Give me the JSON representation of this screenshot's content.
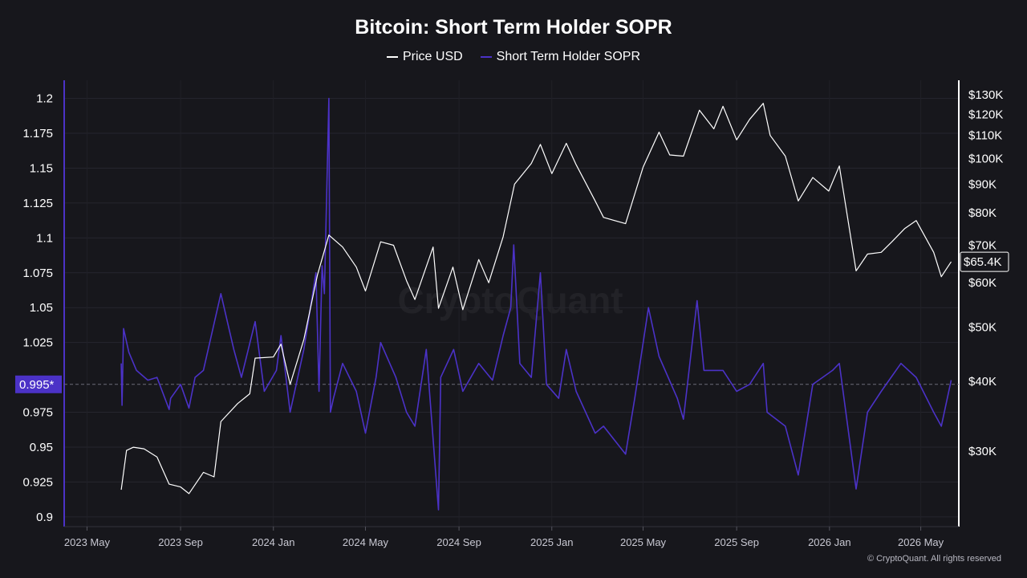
{
  "chart_data": {
    "type": "line",
    "title": "Bitcoin: Short Term Holder SOPR",
    "series": [
      {
        "name": "Price USD",
        "axis": "right",
        "color": "#ffffff",
        "points": [
          [
            "2023-06-15",
            25600
          ],
          [
            "2023-06-22",
            30100
          ],
          [
            "2023-07-01",
            30500
          ],
          [
            "2023-07-15",
            30300
          ],
          [
            "2023-08-01",
            29300
          ],
          [
            "2023-08-17",
            26200
          ],
          [
            "2023-09-01",
            25900
          ],
          [
            "2023-09-12",
            25200
          ],
          [
            "2023-10-01",
            27500
          ],
          [
            "2023-10-15",
            27000
          ],
          [
            "2023-10-24",
            33900
          ],
          [
            "2023-11-15",
            36500
          ],
          [
            "2023-12-01",
            38000
          ],
          [
            "2023-12-08",
            44000
          ],
          [
            "2024-01-01",
            44200
          ],
          [
            "2024-01-11",
            46600
          ],
          [
            "2024-01-23",
            39500
          ],
          [
            "2024-02-10",
            47500
          ],
          [
            "2024-02-28",
            62000
          ],
          [
            "2024-03-14",
            73000
          ],
          [
            "2024-04-01",
            69500
          ],
          [
            "2024-04-19",
            64000
          ],
          [
            "2024-05-01",
            58000
          ],
          [
            "2024-05-21",
            71000
          ],
          [
            "2024-06-07",
            70000
          ],
          [
            "2024-06-24",
            60500
          ],
          [
            "2024-07-05",
            56000
          ],
          [
            "2024-07-29",
            69500
          ],
          [
            "2024-08-05",
            54000
          ],
          [
            "2024-08-24",
            64000
          ],
          [
            "2024-09-06",
            53700
          ],
          [
            "2024-09-27",
            66000
          ],
          [
            "2024-10-10",
            60000
          ],
          [
            "2024-10-29",
            72500
          ],
          [
            "2024-11-13",
            90000
          ],
          [
            "2024-12-05",
            98000
          ],
          [
            "2024-12-17",
            106000
          ],
          [
            "2025-01-01",
            94000
          ],
          [
            "2025-01-20",
            106500
          ],
          [
            "2025-02-02",
            97500
          ],
          [
            "2025-02-27",
            84000
          ],
          [
            "2025-03-10",
            78500
          ],
          [
            "2025-04-08",
            76500
          ],
          [
            "2025-05-01",
            96500
          ],
          [
            "2025-05-22",
            111500
          ],
          [
            "2025-06-05",
            101500
          ],
          [
            "2025-06-23",
            101000
          ],
          [
            "2025-07-14",
            122000
          ],
          [
            "2025-08-02",
            113000
          ],
          [
            "2025-08-14",
            124000
          ],
          [
            "2025-09-01",
            108000
          ],
          [
            "2025-09-18",
            117500
          ],
          [
            "2025-10-06",
            125500
          ],
          [
            "2025-10-15",
            110000
          ],
          [
            "2025-11-04",
            101000
          ],
          [
            "2025-11-21",
            84000
          ],
          [
            "2025-12-10",
            92500
          ],
          [
            "2025-12-31",
            87500
          ],
          [
            "2026-01-14",
            97000
          ],
          [
            "2026-02-05",
            63000
          ],
          [
            "2026-02-20",
            67500
          ],
          [
            "2026-03-10",
            68000
          ],
          [
            "2026-03-24",
            71000
          ],
          [
            "2026-04-10",
            75000
          ],
          [
            "2026-04-25",
            77500
          ],
          [
            "2026-05-18",
            68000
          ],
          [
            "2026-05-28",
            61500
          ],
          [
            "2026-06-10",
            65400
          ]
        ]
      },
      {
        "name": "Short Term Holder SOPR",
        "axis": "left",
        "color": "#4b32c7",
        "points": [
          [
            "2023-06-15",
            1.01
          ],
          [
            "2023-06-16",
            0.98
          ],
          [
            "2023-06-18",
            1.035
          ],
          [
            "2023-06-25",
            1.018
          ],
          [
            "2023-07-05",
            1.005
          ],
          [
            "2023-07-20",
            0.998
          ],
          [
            "2023-08-01",
            1.0
          ],
          [
            "2023-08-17",
            0.977
          ],
          [
            "2023-08-19",
            0.985
          ],
          [
            "2023-09-01",
            0.995
          ],
          [
            "2023-09-12",
            0.978
          ],
          [
            "2023-09-20",
            1.0
          ],
          [
            "2023-10-01",
            1.005
          ],
          [
            "2023-10-24",
            1.06
          ],
          [
            "2023-11-10",
            1.02
          ],
          [
            "2023-11-20",
            1.0
          ],
          [
            "2023-12-08",
            1.04
          ],
          [
            "2023-12-20",
            0.99
          ],
          [
            "2024-01-05",
            1.005
          ],
          [
            "2024-01-11",
            1.03
          ],
          [
            "2024-01-23",
            0.975
          ],
          [
            "2024-02-10",
            1.02
          ],
          [
            "2024-02-26",
            1.075
          ],
          [
            "2024-03-01",
            0.99
          ],
          [
            "2024-03-05",
            1.08
          ],
          [
            "2024-03-08",
            1.06
          ],
          [
            "2024-03-14",
            1.2
          ],
          [
            "2024-03-16",
            0.975
          ],
          [
            "2024-03-20",
            0.985
          ],
          [
            "2024-04-01",
            1.01
          ],
          [
            "2024-04-19",
            0.99
          ],
          [
            "2024-05-01",
            0.96
          ],
          [
            "2024-05-15",
            1.0
          ],
          [
            "2024-05-21",
            1.025
          ],
          [
            "2024-06-10",
            1.0
          ],
          [
            "2024-06-24",
            0.975
          ],
          [
            "2024-07-05",
            0.965
          ],
          [
            "2024-07-20",
            1.02
          ],
          [
            "2024-08-05",
            0.905
          ],
          [
            "2024-08-08",
            1.0
          ],
          [
            "2024-08-25",
            1.02
          ],
          [
            "2024-09-06",
            0.99
          ],
          [
            "2024-09-27",
            1.01
          ],
          [
            "2024-10-15",
            0.998
          ],
          [
            "2024-10-29",
            1.03
          ],
          [
            "2024-11-08",
            1.05
          ],
          [
            "2024-11-12",
            1.095
          ],
          [
            "2024-11-20",
            1.01
          ],
          [
            "2024-12-05",
            1.0
          ],
          [
            "2024-12-17",
            1.075
          ],
          [
            "2024-12-25",
            0.995
          ],
          [
            "2025-01-10",
            0.985
          ],
          [
            "2025-01-20",
            1.02
          ],
          [
            "2025-02-02",
            0.99
          ],
          [
            "2025-02-27",
            0.96
          ],
          [
            "2025-03-10",
            0.965
          ],
          [
            "2025-04-08",
            0.945
          ],
          [
            "2025-04-20",
            0.985
          ],
          [
            "2025-05-08",
            1.05
          ],
          [
            "2025-05-22",
            1.015
          ],
          [
            "2025-06-15",
            0.985
          ],
          [
            "2025-06-23",
            0.97
          ],
          [
            "2025-07-11",
            1.055
          ],
          [
            "2025-07-20",
            1.005
          ],
          [
            "2025-08-14",
            1.005
          ],
          [
            "2025-09-01",
            0.99
          ],
          [
            "2025-09-18",
            0.995
          ],
          [
            "2025-10-06",
            1.01
          ],
          [
            "2025-10-11",
            0.975
          ],
          [
            "2025-11-04",
            0.965
          ],
          [
            "2025-11-21",
            0.93
          ],
          [
            "2025-12-10",
            0.995
          ],
          [
            "2026-01-05",
            1.005
          ],
          [
            "2026-01-14",
            1.01
          ],
          [
            "2026-02-05",
            0.92
          ],
          [
            "2026-02-20",
            0.975
          ],
          [
            "2026-03-10",
            0.99
          ],
          [
            "2026-04-05",
            1.01
          ],
          [
            "2026-04-25",
            1.0
          ],
          [
            "2026-05-18",
            0.975
          ],
          [
            "2026-05-28",
            0.965
          ],
          [
            "2026-06-10",
            0.998
          ]
        ]
      }
    ],
    "x_ticks": [
      {
        "label": "2023 May",
        "date": "2023-05-01"
      },
      {
        "label": "2023 Sep",
        "date": "2023-09-01"
      },
      {
        "label": "2024 Jan",
        "date": "2024-01-01"
      },
      {
        "label": "2024 May",
        "date": "2024-05-01"
      },
      {
        "label": "2024 Sep",
        "date": "2024-09-01"
      },
      {
        "label": "2025 Jan",
        "date": "2025-01-01"
      },
      {
        "label": "2025 May",
        "date": "2025-05-01"
      },
      {
        "label": "2025 Sep",
        "date": "2025-09-01"
      },
      {
        "label": "2026 Jan",
        "date": "2026-01-01"
      },
      {
        "label": "2026 May",
        "date": "2026-05-01"
      }
    ],
    "xlim": [
      "2023-04-01",
      "2026-06-20"
    ],
    "left_axis": {
      "ylim": [
        0.893,
        1.213
      ],
      "ticks": [
        {
          "label": "1.2",
          "value": 1.2
        },
        {
          "label": "1.175",
          "value": 1.175
        },
        {
          "label": "1.15",
          "value": 1.15
        },
        {
          "label": "1.125",
          "value": 1.125
        },
        {
          "label": "1.1",
          "value": 1.1
        },
        {
          "label": "1.075",
          "value": 1.075
        },
        {
          "label": "1.05",
          "value": 1.05
        },
        {
          "label": "1.025",
          "value": 1.025
        },
        {
          "label": "0.975",
          "value": 0.975
        },
        {
          "label": "0.95",
          "value": 0.95
        },
        {
          "label": "0.925",
          "value": 0.925
        },
        {
          "label": "0.9",
          "value": 0.9
        }
      ]
    },
    "right_axis": {
      "scale": "log",
      "ylim": [
        22000,
        138000
      ],
      "ticks": [
        {
          "label": "$130K",
          "value": 130000
        },
        {
          "label": "$120K",
          "value": 120000
        },
        {
          "label": "$110K",
          "value": 110000
        },
        {
          "label": "$100K",
          "value": 100000
        },
        {
          "label": "$90K",
          "value": 90000
        },
        {
          "label": "$80K",
          "value": 80000
        },
        {
          "label": "$70K",
          "value": 70000
        },
        {
          "label": "$60K",
          "value": 60000
        },
        {
          "label": "$50K",
          "value": 50000
        },
        {
          "label": "$40K",
          "value": 40000
        },
        {
          "label": "$30K",
          "value": 30000
        }
      ]
    },
    "reference_line": {
      "value": 0.995,
      "label": "0.995*",
      "color": "#4b32c7"
    },
    "price_badge": {
      "value": 65400,
      "label": "$65.4K"
    },
    "grid": true,
    "legend_position": "top-center"
  },
  "watermark": "CryptoQuant",
  "copyright": "© CryptoQuant. All rights reserved"
}
